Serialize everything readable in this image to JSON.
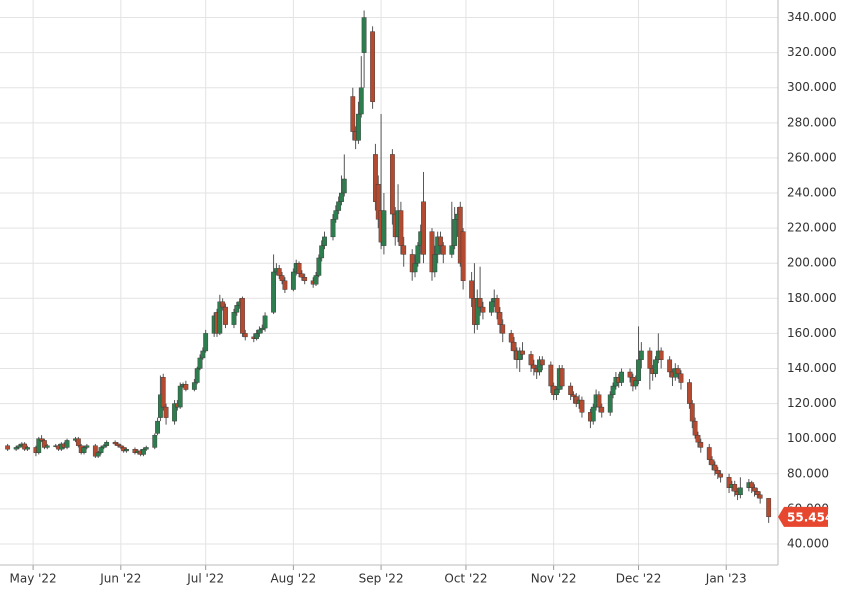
{
  "chart_data": {
    "type": "candlestick",
    "up_color": "#2e7d4f",
    "down_color": "#b44a30",
    "wick_color": "#555555",
    "last_color": "#e8472f",
    "grid": true,
    "xlim": [
      -11.7,
      263.3
    ],
    "xticks": [
      {
        "value": 0,
        "label": "May '22"
      },
      {
        "value": 31,
        "label": "Jun '22"
      },
      {
        "value": 61,
        "label": "Jul '22"
      },
      {
        "value": 92,
        "label": "Aug '22"
      },
      {
        "value": 123,
        "label": "Sep '22"
      },
      {
        "value": 153,
        "label": "Oct '22"
      },
      {
        "value": 184,
        "label": "Nov '22"
      },
      {
        "value": 214,
        "label": "Dec '22"
      },
      {
        "value": 245,
        "label": "Jan '23"
      }
    ],
    "ylim": [
      28,
      350
    ],
    "yticks": [
      {
        "value": 40,
        "label": "40.000"
      },
      {
        "value": 60,
        "label": "60.000"
      },
      {
        "value": 80,
        "label": "80.000"
      },
      {
        "value": 100,
        "label": "100.000"
      },
      {
        "value": 120,
        "label": "120.000"
      },
      {
        "value": 140,
        "label": "140.000"
      },
      {
        "value": 160,
        "label": "160.000"
      },
      {
        "value": 180,
        "label": "180.000"
      },
      {
        "value": 200,
        "label": "200.000"
      },
      {
        "value": 220,
        "label": "220.000"
      },
      {
        "value": 240,
        "label": "240.000"
      },
      {
        "value": 260,
        "label": "260.000"
      },
      {
        "value": 280,
        "label": "280.000"
      },
      {
        "value": 300,
        "label": "300.000"
      },
      {
        "value": 320,
        "label": "320.000"
      },
      {
        "value": 340,
        "label": "340.000"
      }
    ],
    "x": [
      -9,
      -6,
      -5,
      -4,
      -3,
      -2,
      1,
      2,
      3,
      4,
      5,
      8,
      9,
      10,
      11,
      12,
      15,
      16,
      17,
      18,
      19,
      22,
      23,
      24,
      25,
      26,
      29,
      30,
      31,
      32,
      33,
      36,
      37,
      38,
      39,
      40,
      43,
      44,
      45,
      46,
      47,
      50,
      51,
      52,
      53,
      54,
      57,
      58,
      59,
      60,
      61,
      64,
      65,
      66,
      67,
      68,
      71,
      72,
      73,
      74,
      75,
      78,
      79,
      80,
      81,
      82,
      85,
      86,
      87,
      88,
      89,
      92,
      93,
      94,
      95,
      96,
      99,
      100,
      101,
      102,
      103,
      106,
      107,
      108,
      109,
      110,
      113,
      114,
      115,
      116,
      117,
      120,
      121,
      122,
      123,
      124,
      127,
      128,
      129,
      130,
      131,
      134,
      135,
      136,
      137,
      138,
      141,
      142,
      143,
      144,
      145,
      148,
      149,
      150,
      151,
      152,
      155,
      156,
      157,
      158,
      159,
      162,
      163,
      164,
      165,
      166,
      169,
      170,
      171,
      172,
      173,
      176,
      177,
      178,
      179,
      180,
      183,
      184,
      185,
      186,
      187,
      190,
      191,
      192,
      193,
      194,
      197,
      198,
      199,
      200,
      201,
      204,
      205,
      206,
      207,
      208,
      211,
      212,
      213,
      214,
      215,
      218,
      219,
      220,
      221,
      222,
      225,
      226,
      227,
      228,
      229,
      232,
      233,
      234,
      235,
      236,
      239,
      240,
      241,
      242,
      243,
      246,
      247,
      248,
      249,
      250,
      253,
      254,
      255,
      256,
      257,
      260
    ],
    "open": [
      96,
      94,
      95,
      96,
      97,
      94,
      95,
      92,
      100,
      99,
      95,
      96,
      96,
      94,
      97,
      95,
      99,
      100,
      96,
      92,
      95,
      96,
      90,
      92,
      95,
      96,
      98,
      97,
      96,
      95,
      93,
      94,
      92,
      93,
      91,
      94,
      95,
      103,
      112,
      135,
      118,
      110,
      120,
      118,
      130,
      131,
      128,
      132,
      140,
      146,
      150,
      160,
      172,
      160,
      178,
      175,
      165,
      172,
      176,
      180,
      160,
      158,
      157,
      160,
      162,
      163,
      172,
      195,
      197,
      193,
      190,
      185,
      195,
      200,
      194,
      192,
      190,
      188,
      193,
      203,
      210,
      215,
      225,
      230,
      235,
      240,
      295,
      275,
      270,
      285,
      320,
      332,
      262,
      245,
      230,
      210,
      262,
      228,
      215,
      230,
      210,
      205,
      195,
      200,
      210,
      235,
      218,
      195,
      205,
      215,
      210,
      205,
      210,
      225,
      232,
      218,
      190,
      180,
      165,
      180,
      175,
      172,
      178,
      180,
      172,
      165,
      160,
      155,
      150,
      145,
      150,
      148,
      142,
      140,
      138,
      145,
      142,
      130,
      125,
      128,
      140,
      130,
      125,
      124,
      120,
      122,
      115,
      110,
      118,
      125,
      118,
      115,
      125,
      130,
      135,
      132,
      138,
      135,
      130,
      133,
      145,
      150,
      140,
      137,
      145,
      150,
      145,
      138,
      135,
      140,
      137,
      132,
      120,
      110,
      102,
      98,
      95,
      88,
      85,
      82,
      80,
      78,
      72,
      74,
      70,
      68,
      72,
      75,
      72,
      70,
      68,
      66
    ],
    "high": [
      97,
      96,
      97,
      98,
      98,
      96,
      96,
      101,
      102,
      100,
      97,
      97,
      97,
      98,
      98,
      100,
      101,
      101,
      97,
      96,
      97,
      97,
      93,
      96,
      97,
      99,
      99,
      98,
      97,
      96,
      95,
      95,
      94,
      94,
      95,
      96,
      103,
      112,
      136,
      137,
      120,
      122,
      122,
      132,
      132,
      133,
      134,
      141,
      148,
      152,
      162,
      172,
      174,
      182,
      180,
      177,
      174,
      178,
      180,
      181,
      162,
      160,
      162,
      164,
      165,
      172,
      205,
      200,
      199,
      195,
      192,
      197,
      202,
      201,
      196,
      194,
      192,
      195,
      205,
      213,
      218,
      228,
      233,
      238,
      250,
      262,
      300,
      278,
      292,
      318,
      344,
      335,
      268,
      250,
      285,
      240,
      265,
      232,
      245,
      235,
      215,
      208,
      205,
      212,
      222,
      252,
      220,
      210,
      218,
      218,
      212,
      235,
      232,
      232,
      235,
      220,
      195,
      200,
      185,
      198,
      178,
      180,
      185,
      182,
      175,
      168,
      162,
      158,
      152,
      152,
      155,
      150,
      145,
      142,
      147,
      147,
      144,
      132,
      130,
      142,
      142,
      132,
      127,
      126,
      125,
      124,
      117,
      120,
      128,
      127,
      120,
      127,
      132,
      138,
      137,
      140,
      140,
      137,
      136,
      164,
      155,
      152,
      142,
      147,
      160,
      152,
      147,
      140,
      143,
      142,
      139,
      134,
      122,
      112,
      104,
      100,
      97,
      90,
      87,
      84,
      82,
      80,
      76,
      76,
      72,
      78,
      77,
      76,
      74,
      72,
      70,
      66
    ],
    "low": [
      93,
      93,
      94,
      95,
      93,
      93,
      90,
      91,
      98,
      94,
      94,
      95,
      93,
      93,
      94,
      94,
      98,
      95,
      91,
      91,
      94,
      89,
      89,
      91,
      94,
      95,
      96,
      95,
      94,
      92,
      92,
      91,
      91,
      90,
      90,
      93,
      94,
      102,
      110,
      116,
      108,
      108,
      116,
      117,
      129,
      127,
      127,
      131,
      139,
      145,
      149,
      158,
      158,
      159,
      173,
      163,
      163,
      170,
      174,
      158,
      156,
      155,
      156,
      158,
      160,
      161,
      171,
      193,
      191,
      188,
      183,
      184,
      193,
      192,
      190,
      188,
      186,
      187,
      192,
      201,
      208,
      213,
      223,
      228,
      233,
      238,
      270,
      265,
      268,
      283,
      300,
      288,
      230,
      220,
      208,
      205,
      222,
      210,
      212,
      205,
      198,
      190,
      192,
      198,
      205,
      200,
      190,
      192,
      200,
      205,
      200,
      203,
      208,
      215,
      198,
      185,
      175,
      160,
      162,
      170,
      168,
      170,
      175,
      168,
      160,
      155,
      150,
      145,
      140,
      138,
      145,
      138,
      136,
      134,
      136,
      139,
      126,
      122,
      122,
      126,
      128,
      122,
      120,
      118,
      117,
      112,
      106,
      108,
      116,
      115,
      112,
      113,
      123,
      128,
      129,
      130,
      132,
      127,
      128,
      131,
      140,
      128,
      133,
      135,
      143,
      140,
      135,
      130,
      133,
      134,
      128,
      117,
      106,
      100,
      95,
      92,
      85,
      82,
      79,
      77,
      75,
      69,
      70,
      67,
      65,
      66,
      70,
      69,
      67,
      66,
      63,
      52
    ],
    "close": [
      94,
      95,
      96,
      97,
      94,
      95,
      92,
      100,
      99,
      95,
      96,
      96,
      94,
      97,
      95,
      99,
      100,
      96,
      92,
      95,
      96,
      90,
      92,
      95,
      96,
      98,
      97,
      96,
      95,
      93,
      94,
      92,
      93,
      91,
      94,
      95,
      102,
      110,
      125,
      118,
      112,
      120,
      118,
      130,
      131,
      128,
      132,
      140,
      146,
      150,
      160,
      170,
      160,
      178,
      175,
      165,
      172,
      176,
      178,
      160,
      158,
      157,
      160,
      162,
      163,
      170,
      195,
      197,
      193,
      190,
      185,
      195,
      200,
      194,
      192,
      190,
      188,
      193,
      203,
      210,
      215,
      225,
      230,
      235,
      240,
      248,
      275,
      270,
      285,
      300,
      340,
      292,
      235,
      225,
      212,
      230,
      228,
      215,
      230,
      210,
      205,
      195,
      200,
      210,
      218,
      205,
      195,
      205,
      215,
      210,
      205,
      210,
      225,
      228,
      200,
      190,
      180,
      165,
      180,
      175,
      172,
      178,
      180,
      172,
      165,
      160,
      155,
      150,
      145,
      150,
      148,
      142,
      140,
      138,
      145,
      142,
      130,
      125,
      128,
      140,
      130,
      125,
      124,
      120,
      122,
      115,
      110,
      118,
      125,
      118,
      115,
      125,
      130,
      135,
      132,
      138,
      135,
      130,
      133,
      145,
      150,
      140,
      137,
      145,
      150,
      145,
      138,
      135,
      140,
      137,
      132,
      120,
      110,
      102,
      98,
      95,
      88,
      85,
      82,
      80,
      78,
      72,
      74,
      70,
      68,
      72,
      75,
      72,
      70,
      68,
      66,
      55.454
    ]
  }
}
